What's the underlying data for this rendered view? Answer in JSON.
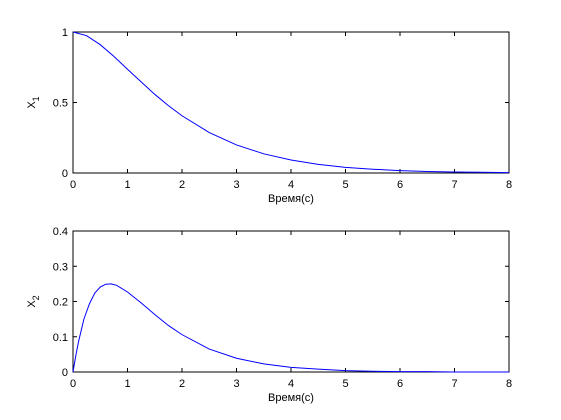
{
  "chart_data": [
    {
      "type": "line",
      "xlabel": "Время(с)",
      "ylabel": "X",
      "ylabel_sub": "1",
      "xlim": [
        0,
        8
      ],
      "ylim": [
        0,
        1
      ],
      "xticks": [
        "0",
        "1",
        "2",
        "3",
        "4",
        "5",
        "6",
        "7",
        "8"
      ],
      "yticks": [
        "0",
        "0.5",
        "1"
      ],
      "color": "#0000ff",
      "x": [
        0,
        0.25,
        0.5,
        0.75,
        1,
        1.25,
        1.5,
        1.75,
        2,
        2.5,
        3,
        3.5,
        4,
        4.5,
        5,
        5.5,
        6,
        6.5,
        7,
        7.5,
        8
      ],
      "y": [
        1.0,
        0.974,
        0.91,
        0.827,
        0.736,
        0.646,
        0.558,
        0.478,
        0.406,
        0.287,
        0.199,
        0.136,
        0.092,
        0.061,
        0.04,
        0.027,
        0.017,
        0.011,
        0.007,
        0.005,
        0.003
      ]
    },
    {
      "type": "line",
      "xlabel": "Время(с)",
      "ylabel": "X",
      "ylabel_sub": "2",
      "xlim": [
        0,
        8
      ],
      "ylim": [
        0,
        0.4
      ],
      "xticks": [
        "0",
        "1",
        "2",
        "3",
        "4",
        "5",
        "6",
        "7",
        "8"
      ],
      "yticks": [
        "0",
        "0.1",
        "0.2",
        "0.3",
        "0.4"
      ],
      "color": "#0000ff",
      "x": [
        0,
        0.05,
        0.1,
        0.2,
        0.3,
        0.4,
        0.5,
        0.6,
        0.7,
        0.8,
        1,
        1.25,
        1.5,
        1.75,
        2,
        2.5,
        3,
        3.5,
        4,
        4.5,
        5,
        5.5,
        6,
        6.5,
        7,
        7.5,
        8
      ],
      "y": [
        0.0,
        0.045,
        0.085,
        0.15,
        0.193,
        0.224,
        0.241,
        0.249,
        0.25,
        0.246,
        0.227,
        0.196,
        0.163,
        0.132,
        0.106,
        0.065,
        0.039,
        0.023,
        0.013,
        0.008,
        0.004,
        0.002,
        0.001,
        0.001,
        0.0,
        0.0,
        0.0
      ]
    }
  ]
}
